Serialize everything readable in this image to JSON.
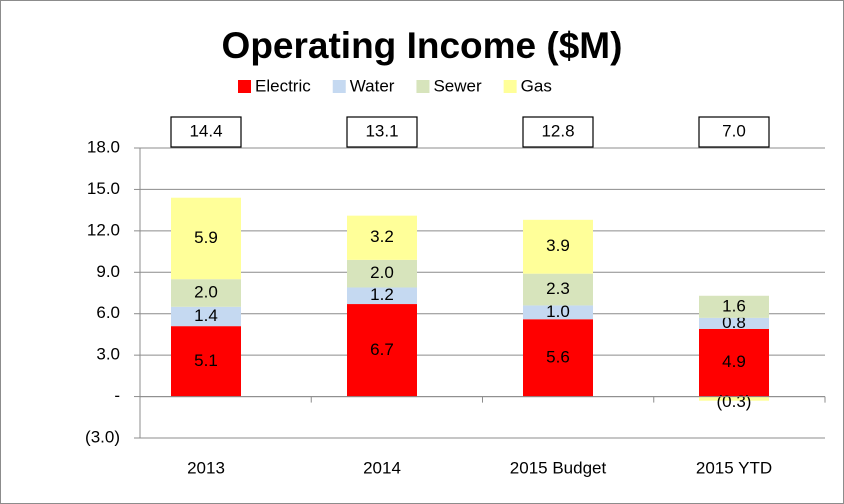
{
  "chart_data": {
    "type": "stacked_bar",
    "title": "Operating Income ($M)",
    "categories": [
      "2013",
      "2014",
      "2015 Budget",
      "2015 YTD"
    ],
    "series": [
      {
        "name": "Electric",
        "color": "#ff0000",
        "values": [
          5.1,
          6.7,
          5.6,
          4.9
        ],
        "value_labels": [
          "5.1",
          "6.7",
          "5.6",
          "4.9"
        ]
      },
      {
        "name": "Water",
        "color": "#c5d9f1",
        "values": [
          1.4,
          1.2,
          1.0,
          0.8
        ],
        "value_labels": [
          "1.4",
          "1.2",
          "1.0",
          "0.8"
        ]
      },
      {
        "name": "Sewer",
        "color": "#d7e4bc",
        "values": [
          2.0,
          2.0,
          2.3,
          1.6
        ],
        "value_labels": [
          "2.0",
          "2.0",
          "2.3",
          "1.6"
        ]
      },
      {
        "name": "Gas",
        "color": "#ffff99",
        "values": [
          5.9,
          3.2,
          3.9,
          -0.3
        ],
        "value_labels": [
          "5.9",
          "3.2",
          "3.9",
          "(0.3)"
        ]
      }
    ],
    "totals": {
      "values": [
        14.4,
        13.1,
        12.8,
        7.0
      ],
      "value_labels": [
        "14.4",
        "13.1",
        "12.8",
        "7.0"
      ]
    },
    "ylim": [
      -3,
      18
    ],
    "yticks": [
      {
        "value": -3,
        "label": "(3.0)"
      },
      {
        "value": 0,
        "label": "-"
      },
      {
        "value": 3,
        "label": "3.0"
      },
      {
        "value": 6,
        "label": "6.0"
      },
      {
        "value": 9,
        "label": "9.0"
      },
      {
        "value": 12,
        "label": "12.0"
      },
      {
        "value": 15,
        "label": "15.0"
      },
      {
        "value": 18,
        "label": "18.0"
      }
    ],
    "grid": true,
    "legend": "top"
  }
}
